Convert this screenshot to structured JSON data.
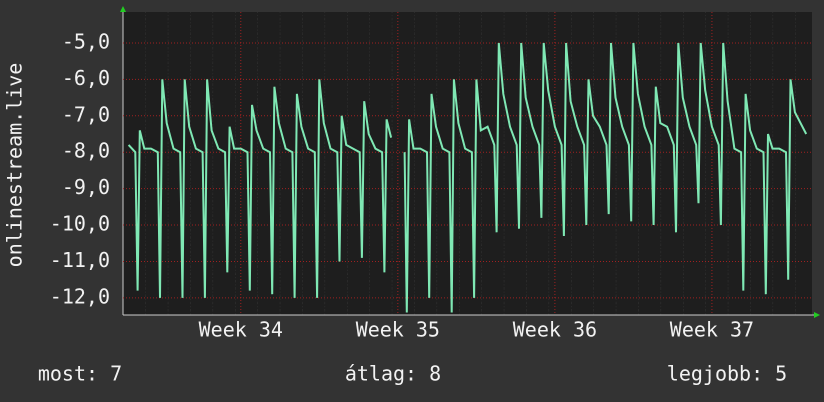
{
  "chart_data": {
    "type": "line",
    "ylabel": "onlinestream.live",
    "color": "#7fe8b4",
    "grid": true,
    "xlim": [
      1.75,
      32.46
    ],
    "xticks": [
      {
        "value": 7,
        "label": "Week 34"
      },
      {
        "value": 14,
        "label": "Week 35"
      },
      {
        "value": 21,
        "label": "Week 36"
      },
      {
        "value": 28,
        "label": "Week 37"
      }
    ],
    "ylim": [
      -12.47,
      -4.15
    ],
    "yticks": [
      {
        "value": -5,
        "label": "-5,0"
      },
      {
        "value": -6,
        "label": "-6,0"
      },
      {
        "value": -7,
        "label": "-7,0"
      },
      {
        "value": -8,
        "label": "-8,0"
      },
      {
        "value": -9,
        "label": "-9,0"
      },
      {
        "value": -10,
        "label": "-10,0"
      },
      {
        "value": -11,
        "label": "-11,0"
      },
      {
        "value": -12,
        "label": "-12,0"
      }
    ],
    "x": [
      2,
      2.3,
      2.4,
      2.5,
      2.7,
      3,
      3.3,
      3.4,
      3.5,
      3.7,
      4,
      4.3,
      4.4,
      4.5,
      4.7,
      5,
      5.3,
      5.4,
      5.5,
      5.7,
      6,
      6.3,
      6.4,
      6.5,
      6.7,
      7,
      7.3,
      7.4,
      7.5,
      7.7,
      8,
      8.3,
      8.4,
      8.5,
      8.7,
      9,
      9.3,
      9.4,
      9.5,
      9.7,
      10,
      10.3,
      10.4,
      10.5,
      10.7,
      11,
      11.3,
      11.4,
      11.5,
      11.7,
      12,
      12.3,
      12.4,
      12.5,
      12.7,
      13,
      13.3,
      13.4,
      13.5,
      13.7,
      14,
      14.3,
      14.4,
      14.5,
      14.7,
      15,
      15.3,
      15.4,
      15.5,
      15.7,
      16,
      16.3,
      16.4,
      16.5,
      16.7,
      17,
      17.3,
      17.4,
      17.5,
      17.7,
      18,
      18.3,
      18.4,
      18.5,
      18.7,
      19,
      19.3,
      19.4,
      19.5,
      19.7,
      20,
      20.3,
      20.4,
      20.5,
      20.7,
      21,
      21.3,
      21.4,
      21.5,
      21.7,
      22,
      22.3,
      22.4,
      22.5,
      22.7,
      23,
      23.3,
      23.4,
      23.5,
      23.7,
      24,
      24.3,
      24.4,
      24.5,
      24.7,
      25,
      25.3,
      25.4,
      25.5,
      25.7,
      26,
      26.3,
      26.4,
      26.5,
      26.7,
      27,
      27.3,
      27.4,
      27.5,
      27.7,
      28,
      28.3,
      28.4,
      28.5,
      28.7,
      29,
      29.3,
      29.4,
      29.5,
      29.7,
      30,
      30.3,
      30.4,
      30.5,
      30.7,
      31,
      31.3,
      31.4,
      31.5,
      31.7,
      32.2
    ],
    "values": [
      -7.8,
      -8,
      -11.8,
      -7.4,
      -7.9,
      -7.9,
      -8,
      -12,
      -6,
      -7.2,
      -7.9,
      -8,
      -12,
      -6,
      -7.3,
      -7.9,
      -8,
      -12,
      -6,
      -7.4,
      -7.9,
      -8,
      -11.3,
      -7.3,
      -7.9,
      -7.9,
      -8,
      -11.8,
      -6.7,
      -7.4,
      -7.9,
      -8,
      -11.9,
      -6.2,
      -7.2,
      -7.9,
      -8,
      -12,
      -6.4,
      -7.3,
      -7.9,
      -8,
      -12,
      -6,
      -7.2,
      -7.9,
      -8,
      -11,
      -7,
      -7.8,
      -7.9,
      -8,
      -10.9,
      -6.6,
      -7.5,
      -7.9,
      -8,
      -11.3,
      -7.1,
      -7.6,
      null,
      -8,
      -12.4,
      -7.1,
      -7.9,
      -7.9,
      -8,
      -12,
      -6.4,
      -7.3,
      -7.9,
      -8,
      -12.4,
      -6,
      -7.2,
      -7.9,
      -8,
      -12,
      -6,
      -7.4,
      -7.3,
      -7.8,
      -10.2,
      -5,
      -6.4,
      -7.3,
      -7.8,
      -10.1,
      -5,
      -6.5,
      -7.3,
      -7.8,
      -9.8,
      -5,
      -6.3,
      -7.3,
      -7.8,
      -10.3,
      -5,
      -6.6,
      -7.3,
      -7.8,
      -10,
      -6,
      -7,
      -7.3,
      -7.8,
      -9.7,
      -5,
      -6.5,
      -7.3,
      -7.8,
      -9.9,
      -5,
      -6.4,
      -7.3,
      -7.8,
      -10,
      -6.2,
      -7.2,
      -7.3,
      -7.8,
      -10.2,
      -5,
      -6.5,
      -7.3,
      -7.8,
      -9.4,
      -5,
      -6.3,
      -7.3,
      -7.8,
      -10,
      -5,
      -6.6,
      -7.9,
      -8,
      -11.8,
      -6.4,
      -7.4,
      -7.9,
      -8,
      -11.9,
      -7.5,
      -7.9,
      -7.9,
      -8,
      -11.5,
      -6,
      -6.9,
      -7.5
    ],
    "annotations": [
      "most: 7",
      "átlag: 8",
      "legjobb: 5"
    ]
  }
}
